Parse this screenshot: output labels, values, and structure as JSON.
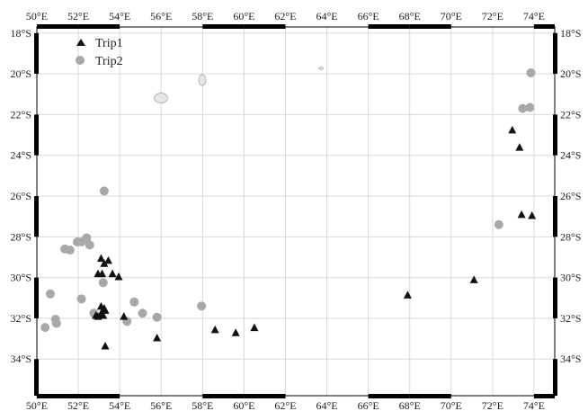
{
  "map": {
    "lon_labels": [
      "50°E",
      "52°E",
      "54°E",
      "56°E",
      "58°E",
      "60°E",
      "62°E",
      "64°E",
      "66°E",
      "68°E",
      "70°E",
      "72°E",
      "74°E"
    ],
    "lat_labels": [
      "18°S",
      "20°S",
      "22°S",
      "24°S",
      "26°S",
      "28°S",
      "30°S",
      "32°S",
      "34°S"
    ],
    "lon_values": [
      50,
      52,
      54,
      56,
      58,
      60,
      62,
      64,
      66,
      68,
      70,
      72,
      74
    ],
    "lat_values": [
      -18,
      -20,
      -22,
      -24,
      -26,
      -28,
      -30,
      -32,
      -34
    ],
    "extent": {
      "lon": [
        50,
        75
      ],
      "lat": [
        -35.8,
        -17.7
      ]
    },
    "land": [
      "Réunion",
      "Mauritius",
      "Rodrigues"
    ],
    "colors": {
      "trip1": "#111111",
      "trip2": "#a8a8a8",
      "grid": "#d9d9d9",
      "frame": "#000000",
      "land": "#e6e6e6"
    }
  },
  "legend": {
    "trip1_label": "Trip1",
    "trip2_label": "Trip2"
  },
  "series": {
    "trip1": [
      [
        53.1,
        -29.05
      ],
      [
        53.45,
        -29.15
      ],
      [
        53.25,
        -29.3
      ],
      [
        52.95,
        -29.8
      ],
      [
        53.15,
        -29.8
      ],
      [
        53.65,
        -29.8
      ],
      [
        53.95,
        -29.95
      ],
      [
        53.1,
        -31.4
      ],
      [
        53.25,
        -31.5
      ],
      [
        53.3,
        -31.6
      ],
      [
        53.1,
        -31.75
      ],
      [
        53.2,
        -31.85
      ],
      [
        52.85,
        -31.85
      ],
      [
        52.95,
        -31.9
      ],
      [
        54.2,
        -31.9
      ],
      [
        53.3,
        -33.35
      ],
      [
        55.8,
        -32.95
      ],
      [
        58.6,
        -32.55
      ],
      [
        59.6,
        -32.7
      ],
      [
        60.5,
        -32.45
      ],
      [
        67.9,
        -30.85
      ],
      [
        71.1,
        -30.1
      ],
      [
        72.95,
        -22.75
      ],
      [
        73.3,
        -23.6
      ],
      [
        73.4,
        -26.9
      ],
      [
        73.9,
        -26.95
      ]
    ],
    "trip2": [
      [
        73.85,
        -19.95
      ],
      [
        73.45,
        -21.7
      ],
      [
        73.8,
        -21.65
      ],
      [
        72.3,
        -27.4
      ],
      [
        53.25,
        -25.75
      ],
      [
        52.4,
        -28.05
      ],
      [
        51.95,
        -28.25
      ],
      [
        52.15,
        -28.25
      ],
      [
        52.55,
        -28.4
      ],
      [
        51.35,
        -28.6
      ],
      [
        51.6,
        -28.65
      ],
      [
        50.65,
        -30.8
      ],
      [
        52.15,
        -31.05
      ],
      [
        53.2,
        -30.25
      ],
      [
        54.7,
        -31.2
      ],
      [
        57.95,
        -31.4
      ],
      [
        55.1,
        -31.75
      ],
      [
        55.8,
        -31.95
      ],
      [
        52.75,
        -31.75
      ],
      [
        54.35,
        -32.15
      ],
      [
        50.9,
        -32.05
      ],
      [
        50.95,
        -32.25
      ],
      [
        50.4,
        -32.45
      ]
    ]
  }
}
